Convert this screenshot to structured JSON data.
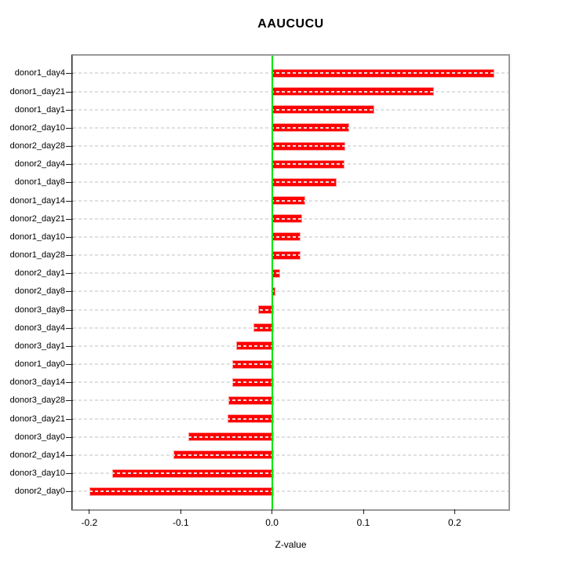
{
  "chart_data": {
    "type": "bar",
    "orientation": "horizontal",
    "title": "AAUCUCU",
    "xlabel": "Z-value",
    "ylabel": "",
    "legend": null,
    "grid": "dotted horizontal line per category",
    "zero_reference_line": true,
    "categories": [
      "donor1_day4",
      "donor1_day21",
      "donor1_day1",
      "donor2_day10",
      "donor2_day28",
      "donor2_day4",
      "donor1_day8",
      "donor1_day14",
      "donor2_day21",
      "donor1_day10",
      "donor1_day28",
      "donor2_day1",
      "donor2_day8",
      "donor3_day8",
      "donor3_day4",
      "donor3_day1",
      "donor1_day0",
      "donor3_day14",
      "donor3_day28",
      "donor3_day21",
      "donor3_day0",
      "donor2_day14",
      "donor3_day10",
      "donor2_day0"
    ],
    "values": [
      0.242,
      0.176,
      0.11,
      0.083,
      0.079,
      0.078,
      0.069,
      0.035,
      0.031,
      0.03,
      0.03,
      0.007,
      0.002,
      -0.015,
      -0.02,
      -0.039,
      -0.044,
      -0.044,
      -0.048,
      -0.049,
      -0.092,
      -0.108,
      -0.175,
      -0.2
    ],
    "x_ticks": [
      "-0.2",
      "-0.1",
      "0.0",
      "0.1",
      "0.2"
    ],
    "x_tick_values": [
      -0.2,
      -0.1,
      0.0,
      0.1,
      0.2
    ],
    "xlim": [
      -0.218,
      0.259
    ],
    "colors": {
      "bar_fill": "#FF0000",
      "bar_border": "#FF9C9C",
      "zero_line": "#00E600",
      "grid_line": "#E0E0E0",
      "box_border": "#9A9A9A",
      "axis_tick": "#1C1C1C",
      "text": "#000000",
      "background": "#FFFFFF"
    }
  }
}
